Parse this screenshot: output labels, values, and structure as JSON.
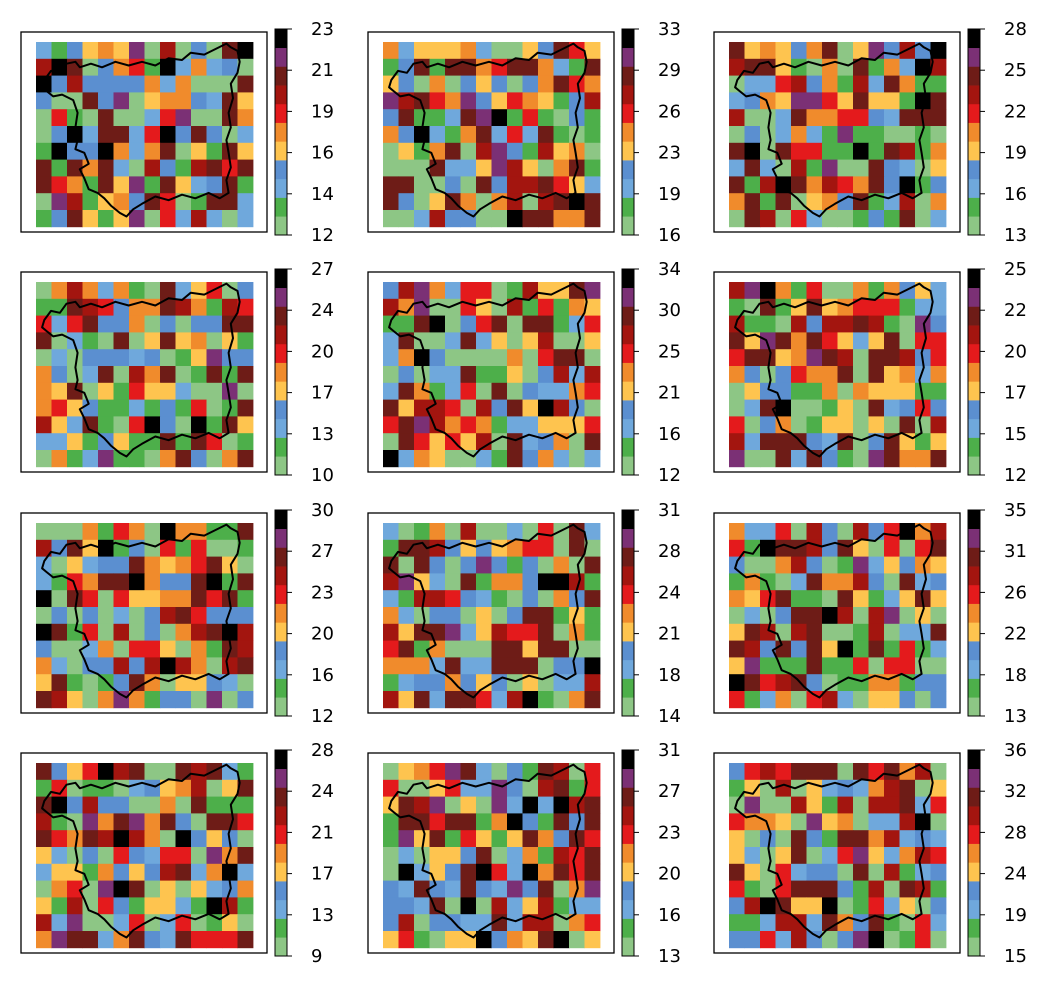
{
  "figure": {
    "layout": {
      "rows": 4,
      "cols": 3
    },
    "palette": [
      "#8dc685",
      "#4daf4a",
      "#6fa8dc",
      "#5b8fd0",
      "#fec44f",
      "#f08b2c",
      "#e41a1c",
      "#a3150f",
      "#6e1c17",
      "#7b3075",
      "#000000"
    ],
    "boundary_color": "#000000"
  },
  "chart_data": [
    {
      "type": "heatmap",
      "title": "",
      "colorbar_ticks": [
        "12",
        "14",
        "16",
        "19",
        "21",
        "23"
      ],
      "range": [
        12,
        23
      ]
    },
    {
      "type": "heatmap",
      "title": "",
      "colorbar_ticks": [
        "16",
        "19",
        "23",
        "26",
        "29",
        "33"
      ],
      "range": [
        16,
        33
      ]
    },
    {
      "type": "heatmap",
      "title": "",
      "colorbar_ticks": [
        "13",
        "16",
        "19",
        "22",
        "25",
        "28"
      ],
      "range": [
        13,
        28
      ]
    },
    {
      "type": "heatmap",
      "title": "",
      "colorbar_ticks": [
        "10",
        "13",
        "17",
        "20",
        "24",
        "27"
      ],
      "range": [
        10,
        27
      ]
    },
    {
      "type": "heatmap",
      "title": "",
      "colorbar_ticks": [
        "12",
        "16",
        "21",
        "25",
        "30",
        "34"
      ],
      "range": [
        12,
        34
      ]
    },
    {
      "type": "heatmap",
      "title": "",
      "colorbar_ticks": [
        "12",
        "15",
        "17",
        "20",
        "22",
        "25"
      ],
      "range": [
        12,
        25
      ]
    },
    {
      "type": "heatmap",
      "title": "",
      "colorbar_ticks": [
        "12",
        "16",
        "20",
        "23",
        "27",
        "30"
      ],
      "range": [
        12,
        30
      ]
    },
    {
      "type": "heatmap",
      "title": "",
      "colorbar_ticks": [
        "14",
        "18",
        "21",
        "24",
        "28",
        "31"
      ],
      "range": [
        14,
        31
      ]
    },
    {
      "type": "heatmap",
      "title": "",
      "colorbar_ticks": [
        "13",
        "18",
        "22",
        "26",
        "31",
        "35"
      ],
      "range": [
        13,
        35
      ]
    },
    {
      "type": "heatmap",
      "title": "",
      "colorbar_ticks": [
        "9",
        "13",
        "17",
        "21",
        "24",
        "28"
      ],
      "range": [
        9,
        28
      ]
    },
    {
      "type": "heatmap",
      "title": "",
      "colorbar_ticks": [
        "13",
        "16",
        "20",
        "23",
        "27",
        "31"
      ],
      "range": [
        13,
        31
      ]
    },
    {
      "type": "heatmap",
      "title": "",
      "colorbar_ticks": [
        "15",
        "19",
        "24",
        "28",
        "32",
        "36"
      ],
      "range": [
        15,
        36
      ]
    }
  ]
}
